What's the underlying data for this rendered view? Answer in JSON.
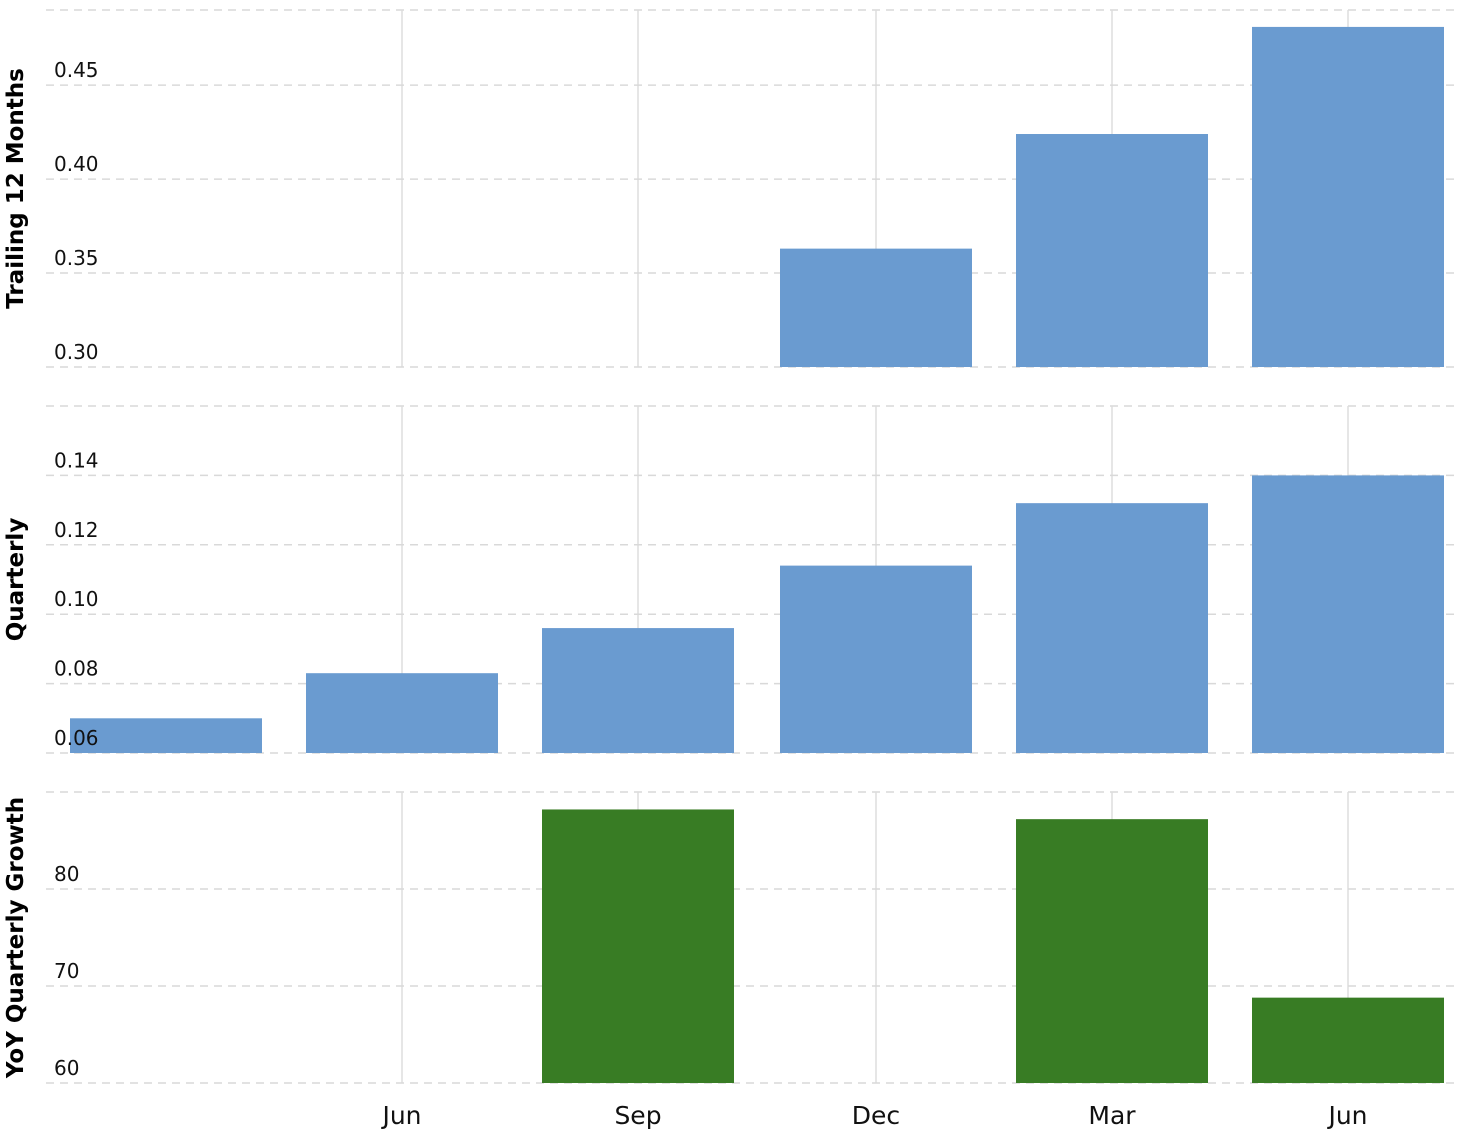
{
  "chart_data": {
    "type": "bar",
    "x_tick_labels": [
      "Jun",
      "Sep",
      "Dec",
      "Mar",
      "Jun"
    ],
    "panels": [
      {
        "ylabel": "Trailing 12 Months",
        "color": "#6a9bd0",
        "yticks": [
          "0.30",
          "0.35",
          "0.40",
          "0.45"
        ],
        "ylim": [
          0.3,
          0.49
        ],
        "values": [
          null,
          null,
          null,
          0.363,
          0.424,
          0.481
        ]
      },
      {
        "ylabel": "Quarterly",
        "color": "#6a9bd0",
        "yticks": [
          "0.06",
          "0.08",
          "0.10",
          "0.12",
          "0.14"
        ],
        "ylim": [
          0.06,
          0.16
        ],
        "values": [
          0.07,
          0.083,
          0.096,
          0.114,
          0.132,
          0.14
        ]
      },
      {
        "ylabel": "YoY Quarterly Growth",
        "color": "#387c24",
        "yticks": [
          "60",
          "70",
          "80"
        ],
        "ylim": [
          60,
          90
        ],
        "values": [
          null,
          null,
          88.2,
          null,
          87.2,
          68.8
        ]
      }
    ]
  }
}
